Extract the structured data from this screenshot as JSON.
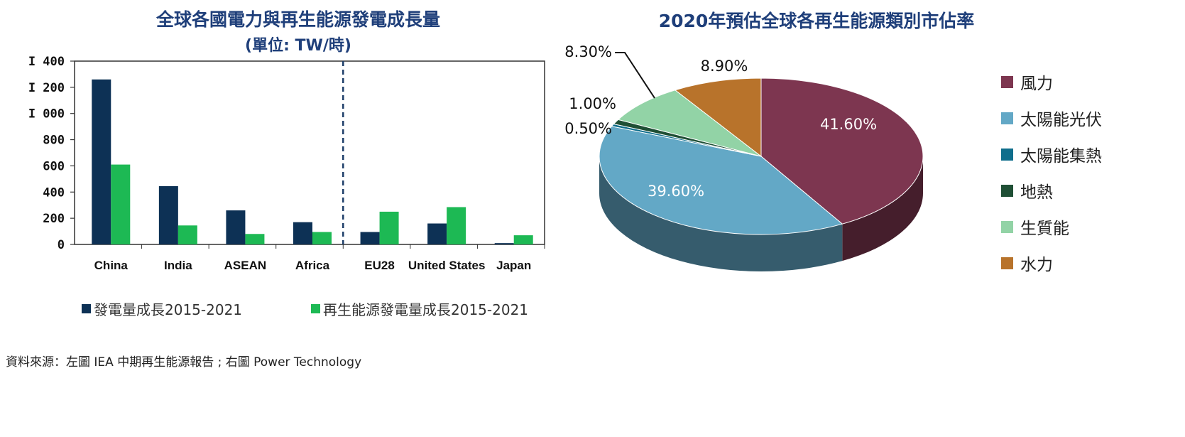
{
  "chart_data": [
    {
      "type": "bar",
      "title": "全球各國電力與再生能源發電成長量",
      "subtitle": "(單位: TW/時)",
      "categories": [
        "China",
        "India",
        "ASEAN",
        "Africa",
        "EU28",
        "United States",
        "Japan"
      ],
      "series": [
        {
          "name": "發電量成長2015-2021",
          "color": "#0d3155",
          "values": [
            1260,
            445,
            260,
            170,
            95,
            160,
            10
          ]
        },
        {
          "name": "再生能源發電量成長2015-2021",
          "color": "#1db954",
          "values": [
            610,
            145,
            80,
            95,
            250,
            285,
            70
          ]
        }
      ],
      "yticks": [
        "0",
        "200",
        "400",
        "600",
        "800",
        "I 000",
        "I 200",
        "I 400"
      ],
      "ylim": [
        0,
        1400
      ],
      "divider_after_category": "Africa",
      "grid": false,
      "legend": "bottom"
    },
    {
      "type": "pie",
      "title": "2020年預估全球各再生能源類別市佔率",
      "slices": [
        {
          "name": "風力",
          "value": 41.6,
          "label": "41.60%",
          "color": "#7d3650"
        },
        {
          "name": "太陽能光伏",
          "value": 39.6,
          "label": "39.60%",
          "color": "#63a8c6"
        },
        {
          "name": "太陽能集熱",
          "value": 0.5,
          "label": "0.50%",
          "color": "#0f6e8c"
        },
        {
          "name": "地熱",
          "value": 1.0,
          "label": "1.00%",
          "color": "#1f4f35"
        },
        {
          "name": "生質能",
          "value": 8.3,
          "label": "8.30%",
          "color": "#92d3a6"
        },
        {
          "name": "水力",
          "value": 8.9,
          "label": "8.90%",
          "color": "#b8732b"
        }
      ],
      "legend": "right"
    }
  ],
  "source_note": "資料來源：左圖 IEA 中期再生能源報告 ; 右圖 Power Technology"
}
